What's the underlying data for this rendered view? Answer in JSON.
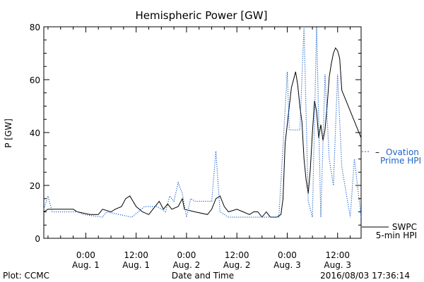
{
  "chart_data": {
    "type": "line",
    "title": "Hemispheric Power [GW]",
    "xlabel": "Date and Time",
    "ylabel": "P [GW]",
    "ylim": [
      0,
      80
    ],
    "xlim": [
      "2016-07-31T14:00",
      "2016-08-03T17:36"
    ],
    "yticks": [
      0,
      20,
      40,
      60,
      80
    ],
    "xticks": [
      {
        "t": "2016-08-01T00:00",
        "time": "0:00",
        "date": "Aug. 1"
      },
      {
        "t": "2016-08-01T12:00",
        "time": "12:00",
        "date": "Aug. 1"
      },
      {
        "t": "2016-08-02T00:00",
        "time": "0:00",
        "date": "Aug. 2"
      },
      {
        "t": "2016-08-02T12:00",
        "time": "12:00",
        "date": "Aug. 2"
      },
      {
        "t": "2016-08-03T00:00",
        "time": "0:00",
        "date": "Aug. 3"
      },
      {
        "t": "2016-08-03T12:00",
        "time": "12:00",
        "date": "Aug. 3"
      }
    ],
    "grid": false,
    "series": [
      {
        "name": "SWPC 5-min HPI",
        "color": "#000000",
        "style": "solid",
        "legend": [
          "SWPC",
          "5-min HPI"
        ],
        "points": [
          [
            "2016-07-31T14:00",
            10
          ],
          [
            "2016-07-31T15:00",
            11
          ],
          [
            "2016-07-31T18:00",
            11
          ],
          [
            "2016-07-31T21:00",
            11
          ],
          [
            "2016-07-31T22:00",
            10
          ],
          [
            "2016-08-01T01:00",
            9
          ],
          [
            "2016-08-01T03:00",
            9
          ],
          [
            "2016-08-01T04:00",
            11
          ],
          [
            "2016-08-01T06:00",
            10
          ],
          [
            "2016-08-01T07:00",
            11
          ],
          [
            "2016-08-01T08:30",
            12
          ],
          [
            "2016-08-01T09:30",
            15
          ],
          [
            "2016-08-01T10:30",
            16
          ],
          [
            "2016-08-01T12:00",
            12
          ],
          [
            "2016-08-01T13:30",
            10
          ],
          [
            "2016-08-01T15:00",
            9
          ],
          [
            "2016-08-01T16:00",
            11
          ],
          [
            "2016-08-01T17:30",
            14
          ],
          [
            "2016-08-01T18:30",
            11
          ],
          [
            "2016-08-01T19:30",
            13
          ],
          [
            "2016-08-01T20:30",
            11
          ],
          [
            "2016-08-01T22:00",
            12
          ],
          [
            "2016-08-01T23:00",
            15
          ],
          [
            "2016-08-01T23:30",
            11
          ],
          [
            "2016-08-02T02:00",
            10
          ],
          [
            "2016-08-02T05:00",
            9
          ],
          [
            "2016-08-02T06:00",
            11
          ],
          [
            "2016-08-02T07:00",
            15
          ],
          [
            "2016-08-02T08:00",
            16
          ],
          [
            "2016-08-02T09:00",
            12
          ],
          [
            "2016-08-02T10:00",
            10
          ],
          [
            "2016-08-02T12:00",
            11
          ],
          [
            "2016-08-02T13:30",
            10
          ],
          [
            "2016-08-02T15:00",
            9
          ],
          [
            "2016-08-02T16:00",
            10
          ],
          [
            "2016-08-02T17:00",
            10
          ],
          [
            "2016-08-02T18:00",
            8
          ],
          [
            "2016-08-02T19:00",
            10
          ],
          [
            "2016-08-02T19:30",
            9
          ],
          [
            "2016-08-02T20:00",
            8
          ],
          [
            "2016-08-02T21:30",
            8
          ],
          [
            "2016-08-02T22:30",
            9
          ],
          [
            "2016-08-02T23:00",
            15
          ],
          [
            "2016-08-02T23:30",
            36
          ],
          [
            "2016-08-03T00:00",
            43
          ],
          [
            "2016-08-03T00:30",
            50
          ],
          [
            "2016-08-03T01:00",
            57
          ],
          [
            "2016-08-03T01:30",
            60
          ],
          [
            "2016-08-03T02:00",
            63
          ],
          [
            "2016-08-03T02:30",
            58
          ],
          [
            "2016-08-03T03:00",
            50
          ],
          [
            "2016-08-03T03:30",
            44
          ],
          [
            "2016-08-03T04:00",
            30
          ],
          [
            "2016-08-03T04:30",
            22
          ],
          [
            "2016-08-03T05:00",
            17
          ],
          [
            "2016-08-03T05:30",
            26
          ],
          [
            "2016-08-03T06:00",
            40
          ],
          [
            "2016-08-03T06:30",
            52
          ],
          [
            "2016-08-03T07:00",
            48
          ],
          [
            "2016-08-03T07:30",
            38
          ],
          [
            "2016-08-03T08:00",
            43
          ],
          [
            "2016-08-03T08:30",
            37
          ],
          [
            "2016-08-03T09:00",
            41
          ],
          [
            "2016-08-03T09:30",
            50
          ],
          [
            "2016-08-03T10:00",
            61
          ],
          [
            "2016-08-03T10:30",
            66
          ],
          [
            "2016-08-03T11:00",
            70
          ],
          [
            "2016-08-03T11:30",
            72
          ],
          [
            "2016-08-03T12:00",
            71
          ],
          [
            "2016-08-03T12:30",
            68
          ],
          [
            "2016-08-03T13:00",
            56
          ],
          [
            "2016-08-03T17:36",
            38
          ]
        ]
      },
      {
        "name": "Ovation Prime HPI",
        "color": "#1f63c7",
        "style": "dotted",
        "legend": [
          "Ovation",
          "Prime HPI"
        ],
        "points": [
          [
            "2016-07-31T14:00",
            11
          ],
          [
            "2016-07-31T15:00",
            16
          ],
          [
            "2016-07-31T16:00",
            10
          ],
          [
            "2016-07-31T22:00",
            10
          ],
          [
            "2016-07-31T23:30",
            9
          ],
          [
            "2016-08-01T04:00",
            8
          ],
          [
            "2016-08-01T05:00",
            10
          ],
          [
            "2016-08-01T08:00",
            9
          ],
          [
            "2016-08-01T11:00",
            8
          ],
          [
            "2016-08-01T14:00",
            12
          ],
          [
            "2016-08-01T17:00",
            12
          ],
          [
            "2016-08-01T19:00",
            10
          ],
          [
            "2016-08-01T20:00",
            16
          ],
          [
            "2016-08-01T21:00",
            14
          ],
          [
            "2016-08-01T22:00",
            21
          ],
          [
            "2016-08-01T23:00",
            17
          ],
          [
            "2016-08-02T00:00",
            8
          ],
          [
            "2016-08-02T01:00",
            15
          ],
          [
            "2016-08-02T02:00",
            14
          ],
          [
            "2016-08-02T06:00",
            14
          ],
          [
            "2016-08-02T07:00",
            33
          ],
          [
            "2016-08-02T08:00",
            10
          ],
          [
            "2016-08-02T10:00",
            8
          ],
          [
            "2016-08-02T17:00",
            8
          ],
          [
            "2016-08-02T22:00",
            8
          ],
          [
            "2016-08-02T23:00",
            35
          ],
          [
            "2016-08-03T00:00",
            63
          ],
          [
            "2016-08-03T00:30",
            41
          ],
          [
            "2016-08-03T03:00",
            41
          ],
          [
            "2016-08-03T04:00",
            80
          ],
          [
            "2016-08-03T05:00",
            14
          ],
          [
            "2016-08-03T06:00",
            8
          ],
          [
            "2016-08-03T07:00",
            80
          ],
          [
            "2016-08-03T08:00",
            8
          ],
          [
            "2016-08-03T09:00",
            62
          ],
          [
            "2016-08-03T10:00",
            30
          ],
          [
            "2016-08-03T11:00",
            20
          ],
          [
            "2016-08-03T12:00",
            62
          ],
          [
            "2016-08-03T13:00",
            27
          ],
          [
            "2016-08-03T15:00",
            8
          ],
          [
            "2016-08-03T16:00",
            30
          ],
          [
            "2016-08-03T17:36",
            8
          ]
        ]
      }
    ]
  },
  "footer": {
    "left": "Plot: CCMC",
    "right": "2016/08/03 17:36:14"
  }
}
